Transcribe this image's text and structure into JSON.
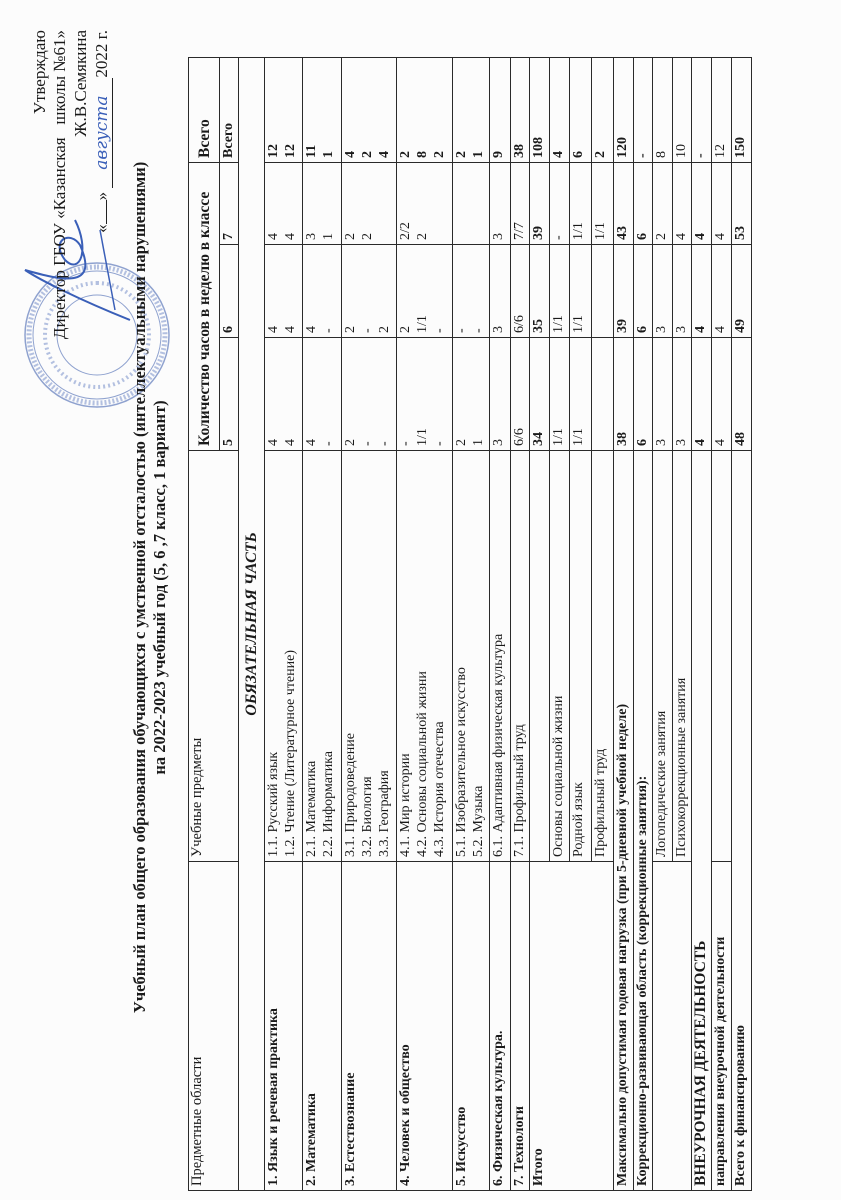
{
  "approval": {
    "line1": "Утверждаю",
    "line2": "Директор ГБОУ «Казанская   школы №61»",
    "line3": "Ж.В.Семякина",
    "line4_open": "«",
    "line4_close": "»",
    "line4_month": "августа",
    "line4_year": "2022 г."
  },
  "stamp_colors": {
    "ink": "#8fa2cf",
    "signature": "#3a5fb8"
  },
  "title": {
    "line1": "Учебный план общего образования обучающихся с умственной отсталостью (интеллектуальными нарушениями)",
    "line2": "на 2022-2023 учебный год (5, 6 ,7 класс, 1 вариант)"
  },
  "table": {
    "headers": {
      "area": "Предметные области",
      "subjects": "Учебные предметы",
      "hours": "Количество часов в неделю в классе",
      "total_top": "Всего",
      "grades": [
        "5",
        "6",
        "7"
      ],
      "total_bottom": "Всего"
    },
    "mandatory": "ОБЯЗАТЕЛЬНАЯ ЧАСТЬ",
    "rows": [
      {
        "area": "1. Язык и речевая практика",
        "subjects": [
          "1.1. Русский язык",
          "1.2. Чтение  (Литературное чтение)"
        ],
        "g5": [
          "4",
          "4"
        ],
        "g6": [
          "4",
          "4"
        ],
        "g7": [
          "4",
          "4"
        ],
        "total": [
          "12",
          "12"
        ]
      },
      {
        "area": "2. Математика",
        "subjects": [
          "2.1. Математика",
          "2.2. Информатика"
        ],
        "g5": [
          "4",
          "-"
        ],
        "g6": [
          "4",
          "-"
        ],
        "g7": [
          "3",
          "1"
        ],
        "total": [
          "11",
          "1"
        ]
      },
      {
        "area": "3. Естествознание",
        "subjects": [
          "3.1. Природоведение",
          "3.2. Биология",
          "3.3. География"
        ],
        "g5": [
          "2",
          "-",
          "-"
        ],
        "g6": [
          "2",
          "-",
          "2"
        ],
        "g7": [
          "",
          "2",
          "2"
        ],
        "total": [
          "4",
          "2",
          "4"
        ]
      },
      {
        "area": "4. Человек и общество",
        "subjects": [
          "4.1. Мир истории",
          "4.2. Основы социальной жизни",
          "4.3. История отечества"
        ],
        "g5": [
          "-",
          "1/1",
          "-"
        ],
        "g6": [
          "2",
          "1/1",
          "-"
        ],
        "g7": [
          "",
          "2/2",
          "2"
        ],
        "total": [
          "2",
          "8",
          "2"
        ]
      },
      {
        "area": "5. Искусство",
        "subjects": [
          "5.1. Изобразительное искусство",
          "5.2. Музыка"
        ],
        "g5": [
          "2",
          "1"
        ],
        "g6": [
          "-",
          "-"
        ],
        "g7": [
          "",
          ""
        ],
        "total": [
          "2",
          "1"
        ]
      },
      {
        "area": "6. Физическая культура.",
        "subjects": [
          "6.1. Адаптивная физическая культура"
        ],
        "g5": [
          "3"
        ],
        "g6": [
          "3"
        ],
        "g7": [
          "3"
        ],
        "total": [
          "9"
        ]
      },
      {
        "area": "7. Технологи",
        "subjects": [
          "7.1. Профильный труд"
        ],
        "g5": [
          "6/6"
        ],
        "g6": [
          "6/6"
        ],
        "g7": [
          "7/7"
        ],
        "total": [
          "38"
        ]
      },
      {
        "area": "Итого",
        "subjects": [],
        "g5": [
          "34"
        ],
        "g6": [
          "35"
        ],
        "g7": [
          "39"
        ],
        "total": [
          "108"
        ]
      },
      {
        "subjects": [
          "Основы социальной жизни"
        ],
        "g5": [
          "1/1"
        ],
        "g6": [
          "1/1"
        ],
        "g7": [
          "-"
        ],
        "total": [
          "4"
        ]
      },
      {
        "subjects": [
          "Родной язык"
        ],
        "g5": [
          "1/1"
        ],
        "g6": [
          "1/1"
        ],
        "g7": [
          "1/1"
        ],
        "total": [
          "6"
        ]
      },
      {
        "subjects": [
          "Профильный труд"
        ],
        "g5": [
          ""
        ],
        "g6": [
          ""
        ],
        "g7": [
          "1/1"
        ],
        "total": [
          "2"
        ]
      },
      {
        "area": "Максимально допустимая годовая нагрузка (при 5-дневной учебной неделе)",
        "g5": [
          "38"
        ],
        "g6": [
          "39"
        ],
        "g7": [
          "43"
        ],
        "total": [
          "120"
        ]
      },
      {
        "area": "Коррекционно-развивающая область (коррекционные занятия):",
        "g5": [
          "6"
        ],
        "g6": [
          "6"
        ],
        "g7": [
          "6"
        ],
        "total": [
          "-"
        ]
      },
      {
        "area": "",
        "subjects": [
          "Логопедические занятия"
        ],
        "g5": [
          "3"
        ],
        "g6": [
          "3"
        ],
        "g7": [
          "2"
        ],
        "total": [
          "8"
        ]
      },
      {
        "subjects": [
          "Психокоррекционные занятия"
        ],
        "g5": [
          "3"
        ],
        "g6": [
          "3"
        ],
        "g7": [
          "4"
        ],
        "total": [
          "10"
        ]
      },
      {
        "area": "ВНЕУРОЧНАЯ ДЕЯТЕЛЬНОСТЬ",
        "g5": [
          "4"
        ],
        "g6": [
          "4"
        ],
        "g7": [
          "4"
        ],
        "total": [
          "-"
        ]
      },
      {
        "area": "направления внеурочной деятельности",
        "subjects": [],
        "g5": [
          "4"
        ],
        "g6": [
          "4"
        ],
        "g7": [
          "4"
        ],
        "total": [
          "12"
        ]
      },
      {
        "area": "Всего к финансированию",
        "subjects": [],
        "g5": [
          "48"
        ],
        "g6": [
          "49"
        ],
        "g7": [
          "53"
        ],
        "total": [
          "150"
        ]
      }
    ]
  }
}
